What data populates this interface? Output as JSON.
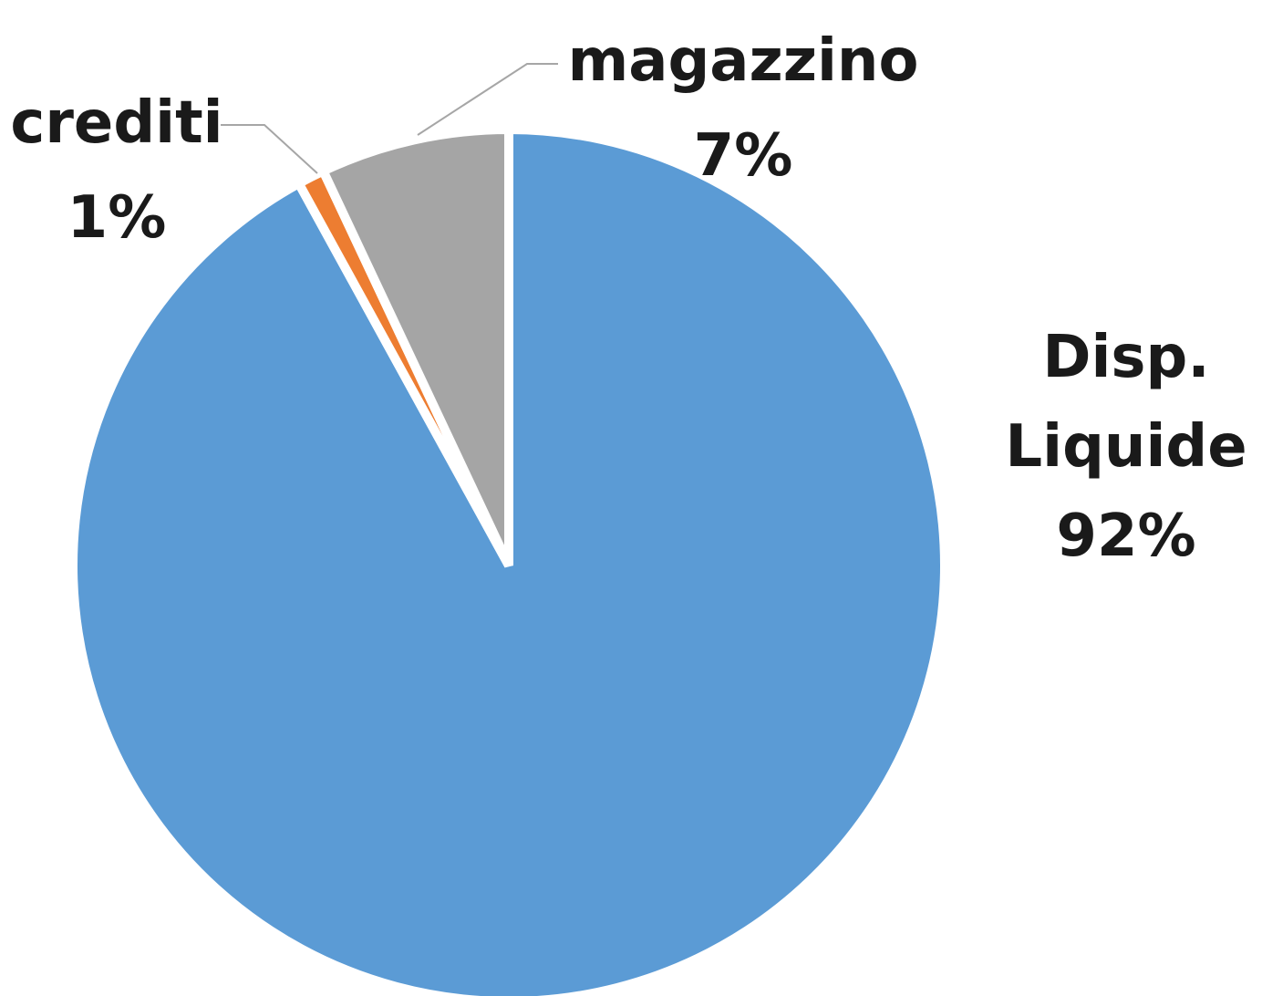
{
  "chart_data": {
    "type": "pie",
    "start_angle_deg": 0,
    "direction": "clockwise",
    "slices": [
      {
        "label": "Disp. Liquide",
        "label_lines": [
          "Disp.",
          "Liquide"
        ],
        "value": 92,
        "value_text": "92%",
        "color": "#5b9bd5"
      },
      {
        "label": "crediti",
        "label_lines": [
          "crediti"
        ],
        "value": 1,
        "value_text": "1%",
        "color": "#ed7d31"
      },
      {
        "label": "magazzino",
        "label_lines": [
          "magazzino"
        ],
        "value": 7,
        "value_text": "7%",
        "color": "#a5a5a5"
      }
    ],
    "legend": "none"
  }
}
